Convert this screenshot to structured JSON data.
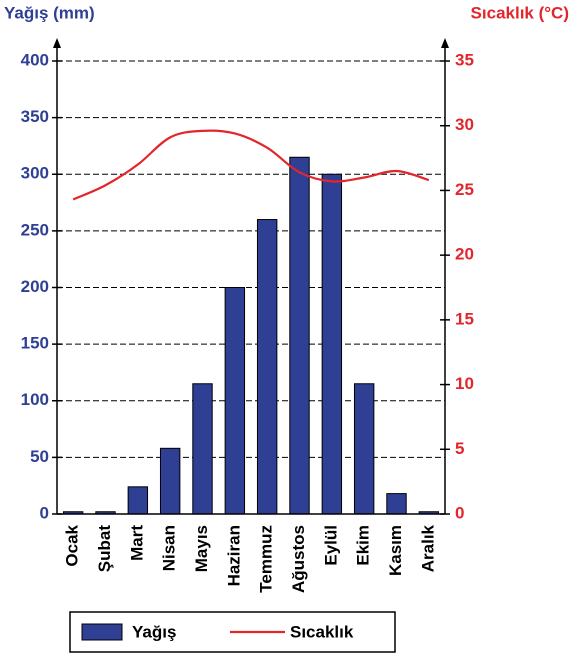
{
  "chart_data": {
    "type": "bar",
    "y_title": "Yağış (mm)",
    "y2_title": "Sıcaklık (°C)",
    "categories": [
      "Ocak",
      "Şubat",
      "Mart",
      "Nisan",
      "Mayıs",
      "Haziran",
      "Temmuz",
      "Ağustos",
      "Eylül",
      "Ekim",
      "Kasım",
      "Aralık"
    ],
    "series": [
      {
        "name": "Yağış",
        "type": "bar",
        "color": "#2e3f94",
        "values": [
          2,
          2,
          24,
          58,
          115,
          200,
          260,
          315,
          300,
          115,
          18,
          2
        ]
      },
      {
        "name": "Sıcaklık",
        "type": "line",
        "axis": "y2",
        "color": "#e3262b",
        "values": [
          24.3,
          25.4,
          27,
          29.1,
          29.6,
          29.4,
          28.3,
          26.4,
          25.7,
          26,
          26.5,
          25.8
        ]
      }
    ],
    "ylim": [
      0,
      400
    ],
    "yticks": [
      0,
      50,
      100,
      150,
      200,
      250,
      300,
      350,
      400
    ],
    "y2lim": [
      0,
      35
    ],
    "y2ticks": [
      0,
      5,
      10,
      15,
      20,
      25,
      30,
      35
    ],
    "grid": true,
    "legend": "bottom"
  }
}
